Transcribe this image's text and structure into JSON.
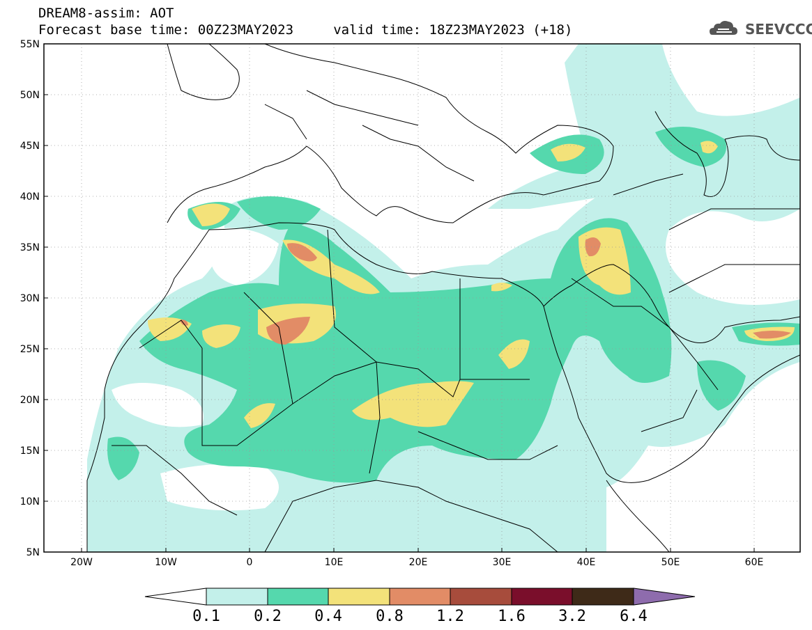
{
  "header": {
    "line1": "DREAM8-assim: AOT",
    "line2": "Forecast base time: 00Z23MAY2023     valid time: 18Z23MAY2023 (+18)",
    "logo_text": "SEEVCCC"
  },
  "map": {
    "lon_range": [
      -25,
      65
    ],
    "lat_range": [
      5,
      55
    ],
    "lat_labels": [
      "55N",
      "50N",
      "45N",
      "40N",
      "35N",
      "30N",
      "25N",
      "20N",
      "15N",
      "10N",
      "5N"
    ],
    "lon_labels": [
      "20W",
      "10W",
      "0",
      "10E",
      "20E",
      "30E",
      "40E",
      "50E",
      "60E"
    ],
    "colors": {
      "aot_0_1": "#c3f0ea",
      "aot_0_2": "#55d8ad",
      "aot_0_4": "#f3e27a",
      "aot_0_8": "#e28c66",
      "aot_1_2": "#a74c3c",
      "aot_1_6": "#7a0e2b",
      "aot_3_2": "#3e2a18",
      "aot_6_4": "#8e6cad"
    }
  },
  "colorbar": {
    "labels": [
      "0.1",
      "0.2",
      "0.4",
      "0.8",
      "1.2",
      "1.6",
      "3.2",
      "6.4"
    ],
    "colors": [
      "#c3f0ea",
      "#55d8ad",
      "#f3e27a",
      "#e28c66",
      "#a74c3c",
      "#7a0e2b",
      "#3e2a18",
      "#8e6cad"
    ]
  }
}
